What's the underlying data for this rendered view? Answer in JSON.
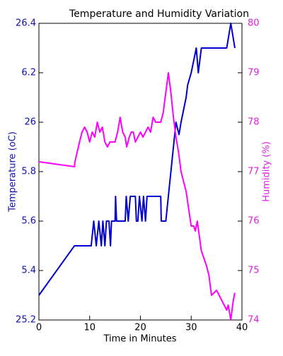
{
  "chart_data": {
    "type": "line",
    "title": "Temperature and Humidity Variation",
    "x_label": "Time in Minutes",
    "y_label": "Temperature (oC)",
    "y2_label": "Humidity (%)",
    "xlim": [
      0,
      40
    ],
    "xticks": [
      0,
      10,
      20,
      30,
      40
    ],
    "ylim": [
      25.2,
      26.4
    ],
    "yticks": [
      25.2,
      {
        "value": 25.4,
        "label": "5.4"
      },
      {
        "value": 25.6,
        "label": "5.6"
      },
      {
        "value": 25.8,
        "label": "5.8"
      },
      26,
      {
        "value": 26.2,
        "label": "6.2"
      },
      26.4
    ],
    "y2lim": [
      74,
      80
    ],
    "y2ticks": [
      74,
      75,
      76,
      77,
      78,
      79,
      80
    ],
    "y_color": "#1010b0",
    "y2_color": "#e020e0",
    "series": [
      {
        "color": "#0000cc",
        "axis": "y",
        "x": [
          0,
          7,
          10.3,
          10.8,
          11.3,
          11.8,
          12.3,
          12.6,
          13,
          13.3,
          13.8,
          14.1,
          14.3,
          15,
          15.1,
          15.3,
          17,
          17.2,
          17.6,
          18,
          19,
          19.2,
          19.5,
          19.8,
          20.3,
          20.6,
          21,
          21.3,
          24,
          24.1,
          25,
          25.5,
          26,
          27,
          27.6,
          28,
          29,
          29.3,
          30,
          31,
          31.4,
          32,
          37,
          37.8,
          38.6
        ],
        "values": [
          25.3,
          25.5,
          25.5,
          25.6,
          25.5,
          25.6,
          25.5,
          25.6,
          25.5,
          25.6,
          25.6,
          25.5,
          25.6,
          25.6,
          25.7,
          25.6,
          25.6,
          25.7,
          25.6,
          25.7,
          25.7,
          25.6,
          25.6,
          25.7,
          25.6,
          25.7,
          25.6,
          25.7,
          25.7,
          25.6,
          25.6,
          25.7,
          25.8,
          26.0,
          25.95,
          26.0,
          26.1,
          26.15,
          26.2,
          26.3,
          26.2,
          26.3,
          26.3,
          26.4,
          26.3
        ]
      },
      {
        "color": "#ff00ff",
        "axis": "y2",
        "x": [
          0,
          7,
          7.1,
          8,
          8.5,
          9,
          9.5,
          10,
          10.5,
          11,
          11.5,
          12,
          12.5,
          13,
          13.5,
          14,
          15,
          15.5,
          16,
          16.5,
          17,
          17.3,
          17.8,
          18.2,
          18.6,
          19,
          19.5,
          20,
          20.5,
          21,
          21.5,
          22,
          22.5,
          23,
          24,
          24.5,
          25.5,
          26,
          26.5,
          27,
          27.5,
          28,
          29,
          30,
          30.5,
          30.8,
          31.2,
          32,
          33,
          33.5,
          34,
          35,
          35.5,
          36,
          36.5,
          37,
          37.3,
          37.8,
          38.3,
          38.6
        ],
        "values": [
          77.2,
          77.1,
          77.2,
          77.6,
          77.8,
          77.9,
          77.8,
          77.6,
          77.8,
          77.7,
          78.0,
          77.8,
          77.9,
          77.6,
          77.5,
          77.6,
          77.6,
          77.8,
          78.1,
          77.8,
          77.7,
          77.5,
          77.7,
          77.8,
          77.8,
          77.6,
          77.7,
          77.8,
          77.7,
          77.8,
          77.9,
          77.8,
          78.1,
          78.0,
          78.0,
          78.2,
          79.0,
          78.6,
          78.1,
          77.7,
          77.4,
          77.0,
          76.6,
          75.9,
          75.9,
          75.8,
          76.0,
          75.4,
          75.1,
          74.9,
          74.5,
          74.6,
          74.5,
          74.4,
          74.3,
          74.2,
          74.3,
          74.0,
          74.4,
          74.55
        ]
      }
    ]
  }
}
